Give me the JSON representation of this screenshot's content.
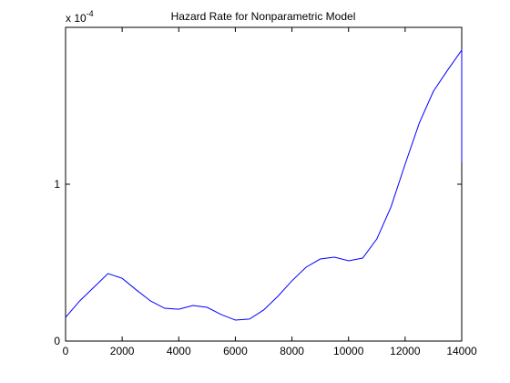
{
  "chart_data": {
    "type": "line",
    "title": "Hazard Rate for Nonparametric Model",
    "y_exponent_label": "x 10",
    "y_exponent": "-4",
    "x": [
      0,
      500,
      1000,
      1500,
      2000,
      2500,
      3000,
      3500,
      4000,
      4500,
      5000,
      5500,
      6000,
      6500,
      7000,
      7500,
      8000,
      8500,
      9000,
      9500,
      10000,
      10500,
      11000,
      11500,
      12000,
      12500,
      13000,
      13500,
      14000,
      14000
    ],
    "series": [
      {
        "color": "#0000ff",
        "values": [
          0.151,
          0.256,
          0.343,
          0.43,
          0.4,
          0.326,
          0.256,
          0.209,
          0.203,
          0.227,
          0.215,
          0.169,
          0.134,
          0.14,
          0.198,
          0.285,
          0.384,
          0.471,
          0.523,
          0.535,
          0.512,
          0.529,
          0.651,
          0.855,
          1.128,
          1.39,
          1.593,
          1.727,
          1.855,
          1.14
        ]
      }
    ],
    "xlim": [
      0,
      14000
    ],
    "xticks": [
      0,
      2000,
      4000,
      6000,
      8000,
      10000,
      12000,
      14000
    ],
    "ylim": [
      0,
      2
    ],
    "yticks": [
      0,
      1
    ]
  }
}
